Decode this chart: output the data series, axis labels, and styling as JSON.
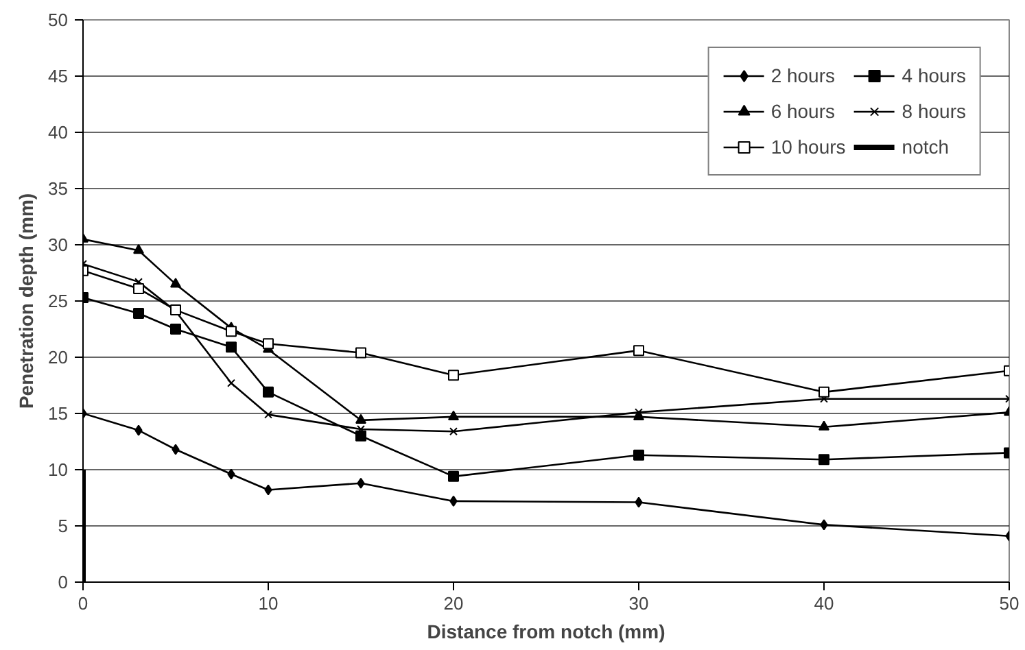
{
  "chart_data": {
    "type": "line",
    "xlabel": "Distance from notch (mm)",
    "ylabel": "Penetration depth (mm)",
    "x": [
      0,
      3,
      5,
      8,
      10,
      15,
      20,
      30,
      40,
      50
    ],
    "xlim": [
      0,
      50
    ],
    "xticks": [
      0,
      10,
      20,
      30,
      40,
      50
    ],
    "ylim": [
      0,
      50
    ],
    "yticks": [
      0,
      5,
      10,
      15,
      20,
      25,
      30,
      35,
      40,
      45,
      50
    ],
    "grid": "y",
    "legend": "top right",
    "series": [
      {
        "name": "2 hours",
        "color": "#000000",
        "marker": "diamond",
        "values": [
          15,
          13.5,
          11.8,
          9.6,
          8.2,
          8.8,
          7.2,
          7.1,
          5.1,
          4.1
        ]
      },
      {
        "name": "4 hours",
        "color": "#000000",
        "marker": "square",
        "values": [
          25.3,
          23.9,
          22.5,
          20.9,
          16.9,
          13.0,
          9.4,
          11.3,
          10.9,
          11.5
        ]
      },
      {
        "name": "6 hours",
        "color": "#000000",
        "marker": "triangle",
        "values": [
          30.5,
          29.5,
          26.5,
          22.6,
          20.7,
          14.4,
          14.7,
          14.7,
          13.8,
          15.1
        ]
      },
      {
        "name": "8 hours",
        "color": "#000000",
        "marker": "cross",
        "values": [
          28.3,
          26.7,
          24.1,
          17.7,
          14.9,
          13.6,
          13.4,
          15.1,
          16.3,
          16.3
        ]
      },
      {
        "name": "10 hours",
        "color": "#000000",
        "marker": "square_open",
        "values": [
          27.7,
          26.1,
          24.2,
          22.3,
          21.2,
          20.4,
          18.4,
          20.6,
          16.9,
          18.8
        ]
      },
      {
        "name": "notch",
        "color": "#000000",
        "marker": "none",
        "x": [
          0,
          0
        ],
        "values": [
          0,
          10
        ]
      }
    ]
  }
}
